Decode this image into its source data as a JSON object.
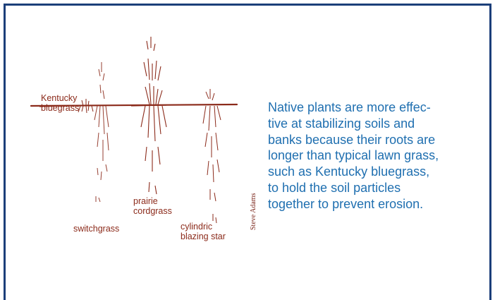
{
  "labels": {
    "kentucky_bluegrass": "Kentucky\nbluegrass",
    "switchgrass": "switchgrass",
    "prairie_cordgrass": "prairie\ncordgrass",
    "cylindric_blazing_star": "cylindric\nblazing star"
  },
  "credit": "Steve Adams",
  "caption": "Native plants are more effec-\ntive at stabilizing soils and\nbanks because their roots are\nlonger than typical lawn grass,\nsuch as Kentucky bluegrass,\nto hold the soil particles\ntogether to prevent erosion.",
  "colors": {
    "border": "#1c3f7a",
    "illustration": "#8b2a1a",
    "caption_text": "#1f6fb0"
  }
}
